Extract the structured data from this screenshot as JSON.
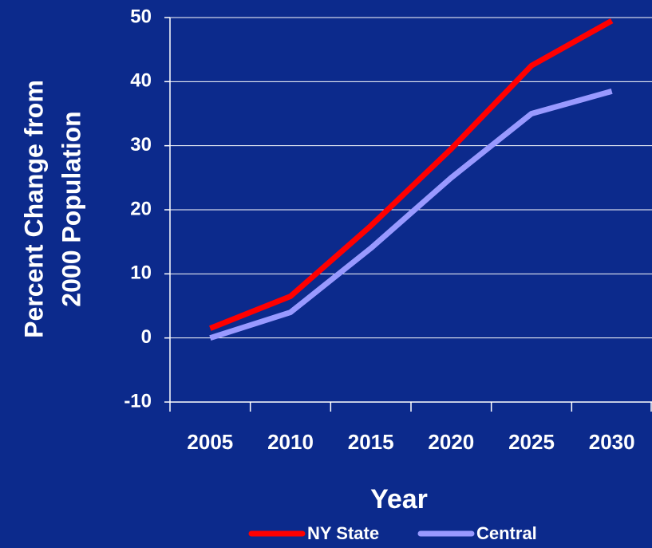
{
  "chart_data": {
    "type": "line",
    "categories": [
      "2005",
      "2010",
      "2015",
      "2020",
      "2025",
      "2030"
    ],
    "series": [
      {
        "name": "NY State",
        "color": "#ff0000",
        "values": [
          1.5,
          6.5,
          17.5,
          29.5,
          42.5,
          49.5
        ]
      },
      {
        "name": "Central",
        "color": "#9999ff",
        "values": [
          0,
          4,
          14,
          25,
          35,
          38.5
        ]
      }
    ],
    "ylim": [
      -10,
      50
    ],
    "yticks": [
      -10,
      0,
      10,
      20,
      30,
      40,
      50
    ],
    "xlabel": "Year",
    "ylabel": [
      "Percent Change from",
      "2000 Population"
    ],
    "grid": true,
    "legend": "bottom"
  }
}
